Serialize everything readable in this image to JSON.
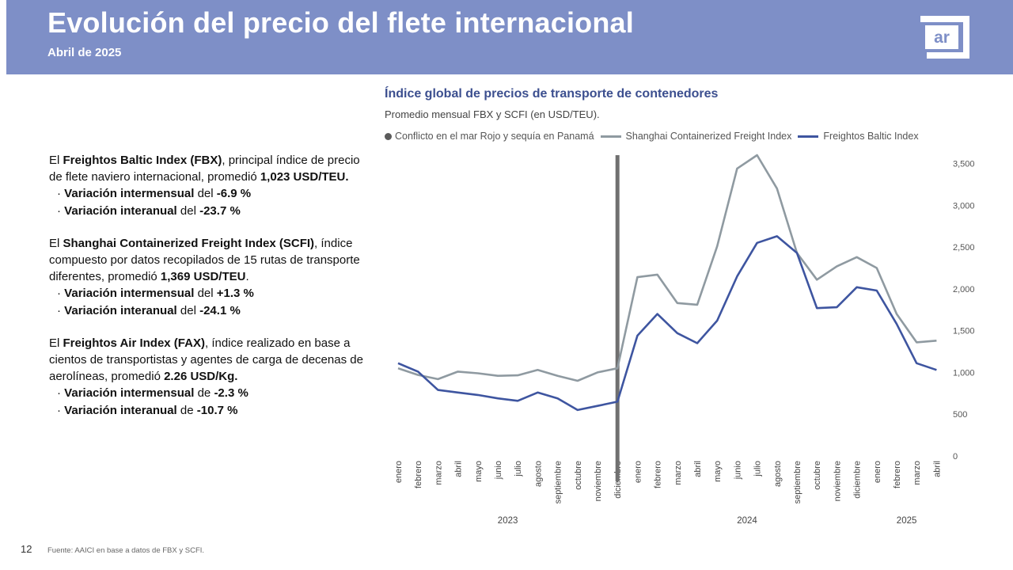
{
  "header": {
    "title": "Evolución del precio del flete internacional",
    "subtitle": "Abril de 2025",
    "logo_text": "ar"
  },
  "text_blocks": [
    {
      "intro_parts": [
        {
          "t": "El ",
          "b": false
        },
        {
          "t": "Freightos Baltic Index (FBX)",
          "b": true
        },
        {
          "t": ", principal índice de precio de flete naviero internacional, promedió ",
          "b": false
        },
        {
          "t": "1,023 USD/TEU.",
          "b": true
        }
      ],
      "bullets": [
        {
          "label": "Variación intermensual",
          "connector": " del ",
          "value": "-6.9 %"
        },
        {
          "label": "Variación interanual",
          "connector": " del ",
          "value": "-23.7 %"
        }
      ]
    },
    {
      "intro_parts": [
        {
          "t": "El ",
          "b": false
        },
        {
          "t": "Shanghai Containerized Freight Index (SCFI)",
          "b": true
        },
        {
          "t": ", índice compuesto por datos recopilados de 15 rutas de transporte diferentes, promedió ",
          "b": false
        },
        {
          "t": "1,369 USD/TEU",
          "b": true
        },
        {
          "t": ".",
          "b": false
        }
      ],
      "bullets": [
        {
          "label": "Variación intermensual",
          "connector": " del ",
          "value": "+1.3 %"
        },
        {
          "label": "Variación interanual",
          "connector": " del ",
          "value": "-24.1 %"
        }
      ]
    },
    {
      "intro_parts": [
        {
          "t": "El ",
          "b": false
        },
        {
          "t": "Freightos Air Index (FAX)",
          "b": true
        },
        {
          "t": ", índice realizado en base a cientos de transportistas y agentes de carga de decenas de aerolíneas, promedió ",
          "b": false
        },
        {
          "t": "2.26 USD/Kg.",
          "b": true
        }
      ],
      "bullets": [
        {
          "label": "Variación intermensual",
          "connector": " de ",
          "value": "-2.3 %"
        },
        {
          "label": "Variación interanual",
          "connector": " de ",
          "value": "-10.7 %"
        }
      ]
    }
  ],
  "chart": {
    "title": "Índice global de precios de transporte de contenedores",
    "subtitle": "Promedio mensual FBX y SCFI (en USD/TEU).",
    "legend": {
      "marker_label": "Conflicto en el mar Rojo y sequía en Panamá",
      "scfi_label": "Shanghai Containerized Freight Index",
      "fbx_label": "Freightos Baltic Index"
    }
  },
  "chart_data": {
    "type": "line",
    "x": [
      "enero",
      "febrero",
      "marzo",
      "abril",
      "mayo",
      "junio",
      "julio",
      "agosto",
      "septiembre",
      "octubre",
      "noviembre",
      "diciembre",
      "enero",
      "febrero",
      "marzo",
      "abril",
      "mayo",
      "junio",
      "julio",
      "agosto",
      "septiembre",
      "octubre",
      "noviembre",
      "diciembre",
      "enero",
      "febrero",
      "marzo",
      "abril"
    ],
    "x_groups": [
      {
        "label": "2023",
        "from": 0,
        "to": 11
      },
      {
        "label": "2024",
        "from": 12,
        "to": 23
      },
      {
        "label": "2025",
        "from": 24,
        "to": 27
      }
    ],
    "series": [
      {
        "name": "Shanghai Containerized Freight Index",
        "color": "#8f9aa1",
        "values": [
          1050,
          970,
          920,
          1010,
          990,
          960,
          965,
          1030,
          960,
          900,
          1000,
          1050,
          2140,
          2170,
          1830,
          1810,
          2510,
          3440,
          3600,
          3200,
          2430,
          2110,
          2270,
          2380,
          2250,
          1700,
          1360,
          1380
        ]
      },
      {
        "name": "Freightos Baltic Index",
        "color": "#3e55a0",
        "values": [
          1110,
          1010,
          790,
          760,
          730,
          690,
          660,
          760,
          690,
          550,
          600,
          650,
          1440,
          1700,
          1470,
          1350,
          1620,
          2150,
          2550,
          2630,
          2430,
          1770,
          1780,
          2020,
          1980,
          1580,
          1110,
          1030
        ]
      }
    ],
    "event_marker": {
      "label": "Conflicto en el mar Rojo y sequía en Panamá",
      "at_index": 11,
      "color": "#707070"
    },
    "y_ticks": [
      "0",
      "500",
      "1,000",
      "1,500",
      "2,000",
      "2,500",
      "3,000",
      "3,500"
    ],
    "y_tick_values": [
      0,
      500,
      1000,
      1500,
      2000,
      2500,
      3000,
      3500
    ],
    "ylim": [
      0,
      3600
    ],
    "y_axis_side": "right",
    "grid": false
  },
  "footer": {
    "page_number": "12",
    "source": "Fuente: AAICI en base a datos de FBX y SCFI."
  }
}
